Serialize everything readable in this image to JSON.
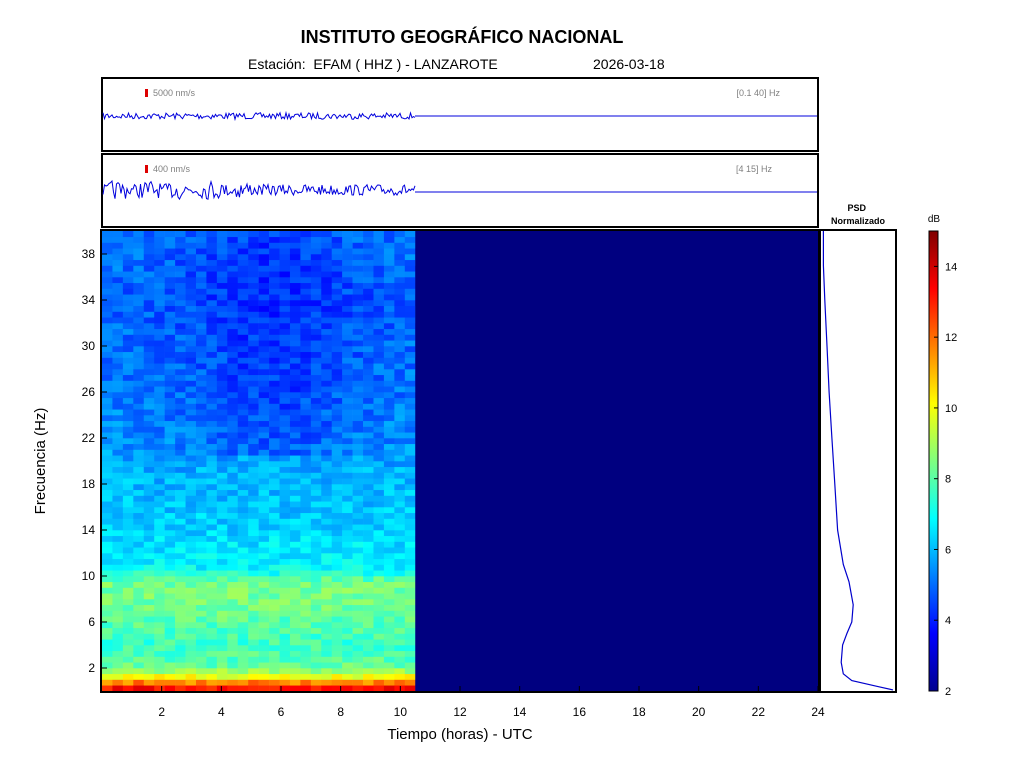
{
  "header": {
    "title": "INSTITUTO GEOGRÁFICO NACIONAL",
    "station": "Estación:  EFAM ( HHZ ) - LANZAROTE",
    "date": "2026-03-18"
  },
  "traces": [
    {
      "scale_label": "5000 nm/s",
      "band_label": "[0.1 40] Hz",
      "data_end_hour": 10.5
    },
    {
      "scale_label": "400 nm/s",
      "band_label": "[4 15] Hz",
      "data_end_hour": 10.5
    }
  ],
  "colors": {
    "trace": "#0000dd",
    "scale_marker": "#dd0000",
    "frame": "#000000"
  },
  "chart_data": [
    {
      "type": "heatmap",
      "name": "spectrogram",
      "xlabel": "Tiempo (horas) - UTC",
      "ylabel": "Frecuencia  (Hz)",
      "xlim": [
        0,
        24
      ],
      "ylim": [
        0,
        40
      ],
      "x_ticks": [
        2,
        4,
        6,
        8,
        10,
        12,
        14,
        16,
        18,
        20,
        22,
        24
      ],
      "y_ticks": [
        2,
        6,
        10,
        14,
        18,
        22,
        26,
        30,
        34,
        38
      ],
      "data_end_hour": 10.5,
      "colormap": "jet",
      "empty_level_db": 2,
      "frequency_profile_db": [
        {
          "f": 0,
          "db": 13.5
        },
        {
          "f": 0.5,
          "db": 13.0
        },
        {
          "f": 1.0,
          "db": 10.5
        },
        {
          "f": 2.0,
          "db": 8.2
        },
        {
          "f": 4.0,
          "db": 7.6
        },
        {
          "f": 6.0,
          "db": 8.0
        },
        {
          "f": 8.0,
          "db": 8.4
        },
        {
          "f": 9.5,
          "db": 8.3
        },
        {
          "f": 10.5,
          "db": 6.9
        },
        {
          "f": 14.0,
          "db": 6.3
        },
        {
          "f": 18.0,
          "db": 6.0
        },
        {
          "f": 22.0,
          "db": 5.5
        },
        {
          "f": 26.0,
          "db": 5.2
        },
        {
          "f": 30.0,
          "db": 5.1
        },
        {
          "f": 34.0,
          "db": 4.9
        },
        {
          "f": 40.0,
          "db": 5.2
        }
      ]
    },
    {
      "type": "line",
      "name": "psd",
      "title": "PSD\nNormalizado",
      "x_label": "",
      "y_label": "",
      "ylim": [
        0,
        40
      ],
      "xlim": [
        0,
        1
      ],
      "points": [
        {
          "f": 0.1,
          "v": 1.0
        },
        {
          "f": 0.4,
          "v": 0.78
        },
        {
          "f": 0.9,
          "v": 0.42
        },
        {
          "f": 1.5,
          "v": 0.3
        },
        {
          "f": 2.5,
          "v": 0.27
        },
        {
          "f": 4.0,
          "v": 0.29
        },
        {
          "f": 5.0,
          "v": 0.35
        },
        {
          "f": 6.0,
          "v": 0.42
        },
        {
          "f": 7.5,
          "v": 0.44
        },
        {
          "f": 9.5,
          "v": 0.38
        },
        {
          "f": 11.0,
          "v": 0.3
        },
        {
          "f": 14.0,
          "v": 0.22
        },
        {
          "f": 18.0,
          "v": 0.18
        },
        {
          "f": 22.0,
          "v": 0.14
        },
        {
          "f": 26.0,
          "v": 0.1
        },
        {
          "f": 30.0,
          "v": 0.07
        },
        {
          "f": 34.0,
          "v": 0.04
        },
        {
          "f": 37.0,
          "v": 0.02
        },
        {
          "f": 40.0,
          "v": 0.02
        }
      ]
    },
    {
      "type": "heatmap",
      "name": "colorbar",
      "title": "dB",
      "ylim": [
        2,
        15
      ],
      "ticks": [
        2,
        4,
        6,
        8,
        10,
        12,
        14
      ],
      "colormap": "jet"
    }
  ]
}
